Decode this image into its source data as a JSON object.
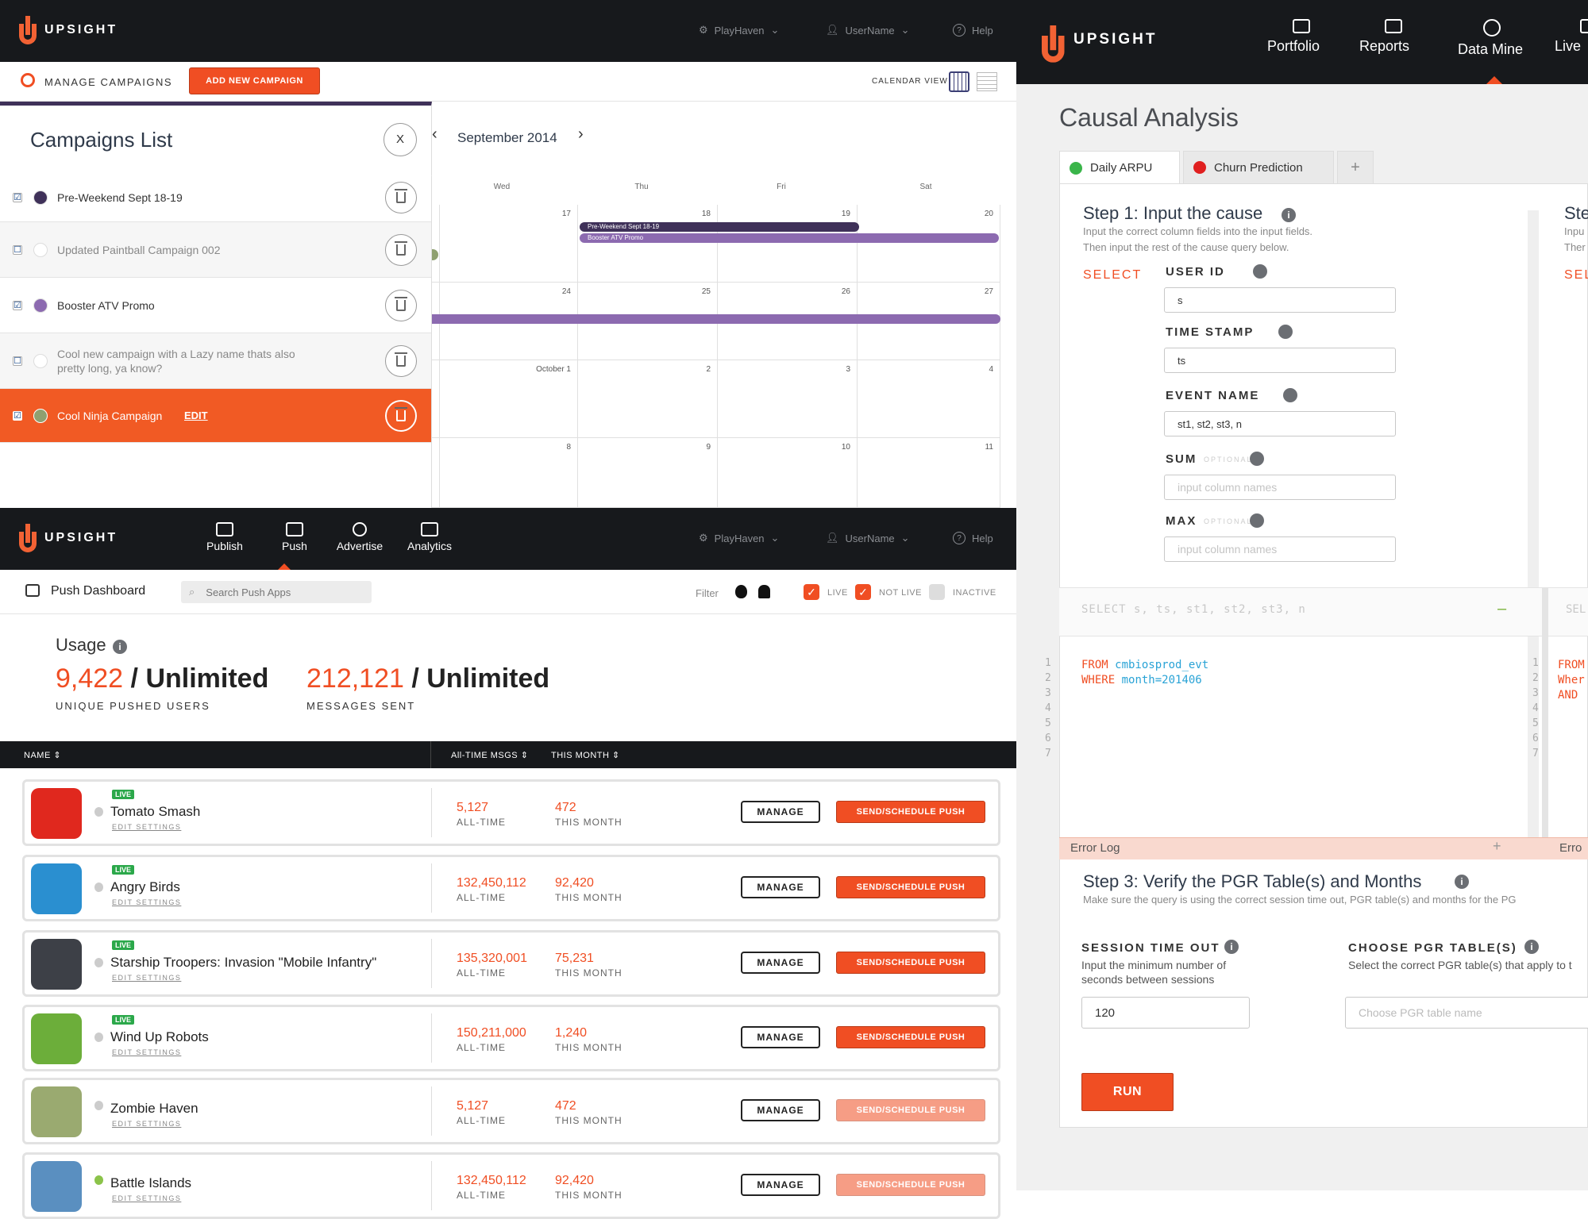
{
  "campaigns_panel": {
    "brand": "UPSIGHT",
    "org": "PlayHaven",
    "user": "UserName",
    "help": "Help",
    "manage_label": "MANAGE CAMPAIGNS",
    "add_new_label": "ADD NEW CAMPAIGN",
    "calendar_view_label": "CALENDAR VIEW",
    "list_title": "Campaigns List",
    "close_label": "X",
    "month_label": "September 2014",
    "weekdays": [
      "Wed",
      "Thu",
      "Fri",
      "Sat"
    ],
    "edit_label": "EDIT",
    "campaigns": [
      {
        "name": "Pre-Weekend Sept 18-19",
        "checked": "☑",
        "color": "#3f3159"
      },
      {
        "name": "Updated Paintball Campaign 002",
        "checked": "☐",
        "color": "#ffffff"
      },
      {
        "name": "Booster ATV Promo",
        "checked": "☑",
        "color": "#8c6ab0"
      },
      {
        "name": "Cool new campaign with a Lazy name thats also pretty long, ya know?",
        "checked": "☐",
        "color": "#ffffff"
      },
      {
        "name": "Cool Ninja Campaign",
        "checked": "☑",
        "color": "#8fa070"
      }
    ],
    "calendar_rows": [
      [
        "",
        "17",
        "18",
        "19",
        "20"
      ],
      [
        "",
        "24",
        "25",
        "26",
        "27"
      ],
      [
        "",
        "October 1",
        "2",
        "3",
        "4"
      ],
      [
        "",
        "8",
        "9",
        "10",
        "11"
      ]
    ],
    "events": [
      "Pre-Weekend Sept 18-19",
      "Booster ATV Promo"
    ]
  },
  "push_panel": {
    "brand": "UPSIGHT",
    "nav": [
      "Publish",
      "Push",
      "Advertise",
      "Analytics"
    ],
    "org": "PlayHaven",
    "user": "UserName",
    "help": "Help",
    "dashboard_title": "Push Dashboard",
    "search_placeholder": "Search Push Apps",
    "filter_label": "Filter",
    "filters": [
      "LIVE",
      "NOT LIVE",
      "INACTIVE"
    ],
    "usage_title": "Usage",
    "users_value": "9,422",
    "users_limit": "/ Unlimited",
    "users_caption": "UNIQUE PUSHED USERS",
    "msgs_value": "212,121",
    "msgs_limit": "/ Unlimited",
    "msgs_caption": "MESSAGES SENT",
    "columns": [
      "NAME",
      "All-TIME MSGS",
      "THIS MONTH"
    ],
    "live_badge": "LIVE",
    "edit_settings": "EDIT SETTINGS",
    "alltime_label": "ALL-TIME",
    "month_label": "THIS MONTH",
    "manage_label": "MANAGE",
    "push_label": "SEND/SCHEDULE PUSH",
    "apps": [
      {
        "name": "Tomato Smash",
        "alltime": "5,127",
        "month": "472",
        "live": true,
        "color": "#e0281e"
      },
      {
        "name": "Angry Birds",
        "alltime": "132,450,112",
        "month": "92,420",
        "live": true,
        "color": "#2a8fd0"
      },
      {
        "name": "Starship Troopers: Invasion \"Mobile Infantry\"",
        "alltime": "135,320,001",
        "month": "75,231",
        "live": true,
        "color": "#3d4047"
      },
      {
        "name": "Wind Up Robots",
        "alltime": "150,211,000",
        "month": "1,240",
        "live": true,
        "color": "#6cae3a"
      },
      {
        "name": "Zombie Haven",
        "alltime": "5,127",
        "month": "472",
        "live": false,
        "color": "#9aaa70"
      },
      {
        "name": "Battle Islands",
        "alltime": "132,450,112",
        "month": "92,420",
        "live": false,
        "color": "#5a8fc0"
      }
    ]
  },
  "analysis_panel": {
    "brand": "UPSIGHT",
    "nav": [
      "Portfolio",
      "Reports",
      "Data Mine",
      "Live"
    ],
    "page_title": "Causal Analysis",
    "tabs": [
      "Daily ARPU",
      "Churn Prediction",
      "+"
    ],
    "step1_title": "Step 1: Input the cause",
    "step1_desc1": "Input the correct column fields into the input fields.",
    "step1_desc2": "Then input the rest of the cause query below.",
    "step2_title_partial": "Ste",
    "step2_desc1": "Inpu",
    "step2_desc2": "Ther",
    "select_label": "SELECT",
    "select_label_partial": "SEL",
    "fields": [
      {
        "label": "USER ID",
        "optional": "",
        "value": "s",
        "placeholder": ""
      },
      {
        "label": "TIME STAMP",
        "optional": "",
        "value": "ts",
        "placeholder": ""
      },
      {
        "label": "EVENT NAME",
        "optional": "",
        "value": "st1, st2, st3, n",
        "placeholder": ""
      },
      {
        "label": "SUM",
        "optional": "OPTIONAL",
        "value": "",
        "placeholder": "input column names"
      },
      {
        "label": "MAX",
        "optional": "OPTIONAL",
        "value": "",
        "placeholder": "input column names"
      }
    ],
    "select_preview": "SELECT s, ts, st1, st2, st3, n",
    "select_preview_partial": "SEL",
    "code_line1a": "FROM",
    "code_line1b": "cmbiosprod_evt",
    "code_line2a": "WHERE",
    "code_line2b": "month=201406",
    "code2_lines": [
      "FROM",
      "Wher",
      "AND"
    ],
    "line_numbers": [
      "1",
      "2",
      "3",
      "4",
      "5",
      "6",
      "7"
    ],
    "error_log": "Error Log",
    "error_log_partial": "Erro",
    "step3_title": "Step 3: Verify the PGR Table(s) and Months",
    "step3_desc": "Make sure the query is using the correct session time out, PGR table(s) and months for the PG",
    "session_label": "SESSION TIME OUT",
    "session_desc1": "Input the minimum number of",
    "session_desc2": "seconds between sessions",
    "session_value": "120",
    "pgr_label": "CHOOSE PGR TABLE(S)",
    "pgr_desc": "Select the correct PGR table(s) that apply to t",
    "pgr_placeholder": "Choose PGR table name",
    "run_label": "RUN"
  }
}
